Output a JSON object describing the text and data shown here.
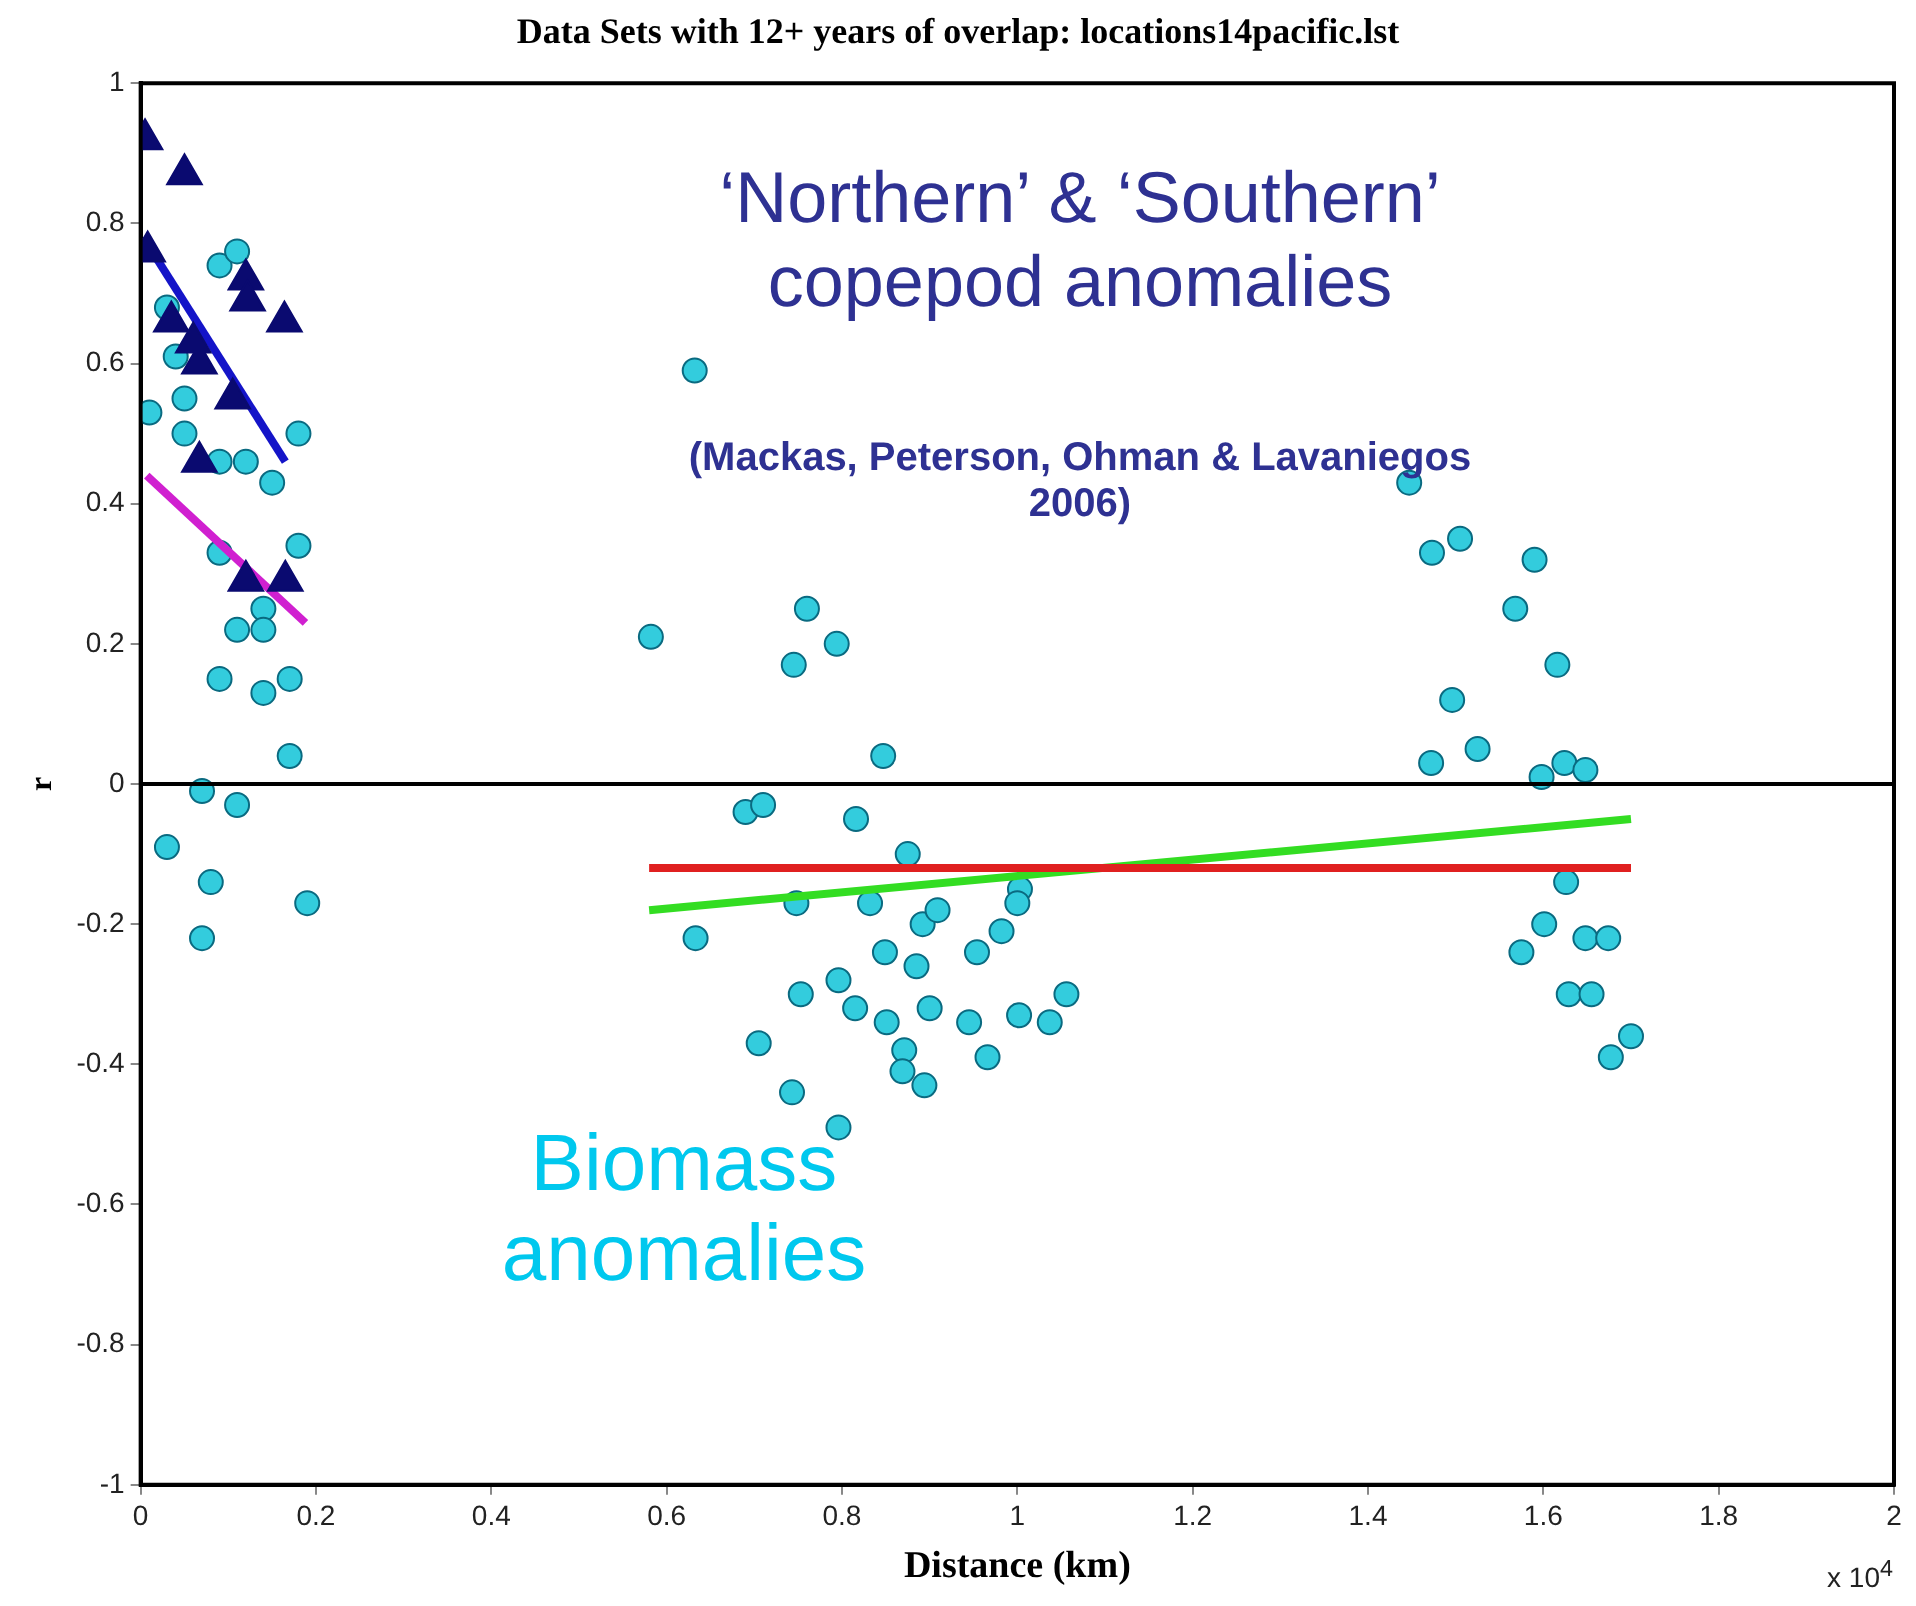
{
  "chart_data": {
    "type": "scatter",
    "title": "Data Sets with 12+ years of overlap: locations14pacific.lst",
    "xlabel": "Distance (km)",
    "ylabel": "r",
    "xlim": [
      0,
      2
    ],
    "xticks": [
      0,
      0.2,
      0.4,
      0.6,
      0.8,
      1,
      1.2,
      1.4,
      1.6,
      1.8,
      2
    ],
    "ylim": [
      -1,
      1
    ],
    "yticks": [
      -1,
      -0.8,
      -0.6,
      -0.4,
      -0.2,
      0,
      0.2,
      0.4,
      0.6,
      0.8,
      1
    ],
    "grid": false,
    "legend": false,
    "ref_lines": [
      {
        "axis": "y",
        "value": 0,
        "color": "#000000"
      }
    ],
    "annotations": [
      "‘Northern’ & ‘Southern’ copepod anomalies",
      "(Mackas, Peterson, Ohman & Lavaniegos 2006)",
      "Biomass anomalies",
      "x 10$^{4}$"
    ],
    "series": [
      {
        "type": "scatter",
        "marker": "circle",
        "color": "#33ccdd",
        "x": [
          0.01,
          0.05,
          0.05,
          0.03,
          0.04,
          0.09,
          0.11,
          0.09,
          0.12,
          0.15,
          0.18,
          0.18,
          0.09,
          0.14,
          0.11,
          0.14,
          0.09,
          0.14,
          0.17,
          0.17,
          0.07,
          0.11,
          0.03,
          0.08,
          0.07,
          0.19,
          0.632,
          0.582,
          0.76,
          0.794,
          0.745,
          0.847,
          0.69,
          0.71,
          0.816,
          0.875,
          0.633,
          0.748,
          0.832,
          1.003,
          1.0,
          0.892,
          0.909,
          0.982,
          0.849,
          0.954,
          0.885,
          0.753,
          0.796,
          0.815,
          0.851,
          0.9,
          0.945,
          1.002,
          1.037,
          1.056,
          0.966,
          0.871,
          0.869,
          0.894,
          0.705,
          0.743,
          0.796,
          1.447,
          1.473,
          1.505,
          1.59,
          1.568,
          1.616,
          1.496,
          1.525,
          1.472,
          1.598,
          1.624,
          1.648,
          1.626,
          1.601,
          1.575,
          1.648,
          1.674,
          1.629,
          1.655,
          1.7,
          1.677
        ],
        "values": [
          0.53,
          0.55,
          0.5,
          0.68,
          0.61,
          0.74,
          0.76,
          0.46,
          0.46,
          0.43,
          0.5,
          0.34,
          0.33,
          0.25,
          0.22,
          0.22,
          0.15,
          0.13,
          0.15,
          0.04,
          -0.01,
          -0.03,
          -0.09,
          -0.14,
          -0.22,
          -0.17,
          0.59,
          0.21,
          0.25,
          0.2,
          0.17,
          0.04,
          -0.04,
          -0.03,
          -0.05,
          -0.1,
          -0.22,
          -0.17,
          -0.17,
          -0.15,
          -0.17,
          -0.2,
          -0.18,
          -0.21,
          -0.24,
          -0.24,
          -0.26,
          -0.3,
          -0.28,
          -0.32,
          -0.34,
          -0.32,
          -0.34,
          -0.33,
          -0.34,
          -0.3,
          -0.39,
          -0.38,
          -0.41,
          -0.43,
          -0.37,
          -0.44,
          -0.49,
          0.43,
          0.33,
          0.35,
          0.32,
          0.25,
          0.17,
          0.12,
          0.05,
          0.03,
          0.01,
          0.03,
          0.02,
          -0.14,
          -0.2,
          -0.24,
          -0.22,
          -0.22,
          -0.3,
          -0.3,
          -0.36,
          -0.39
        ]
      },
      {
        "type": "scatter",
        "marker": "triangle",
        "color": "#0a0a70",
        "x": [
          0.005,
          0.05,
          0.008,
          0.045,
          0.067,
          0.035,
          0.06,
          0.12,
          0.122,
          0.164,
          0.105,
          0.067,
          0.12,
          0.165
        ],
        "values": [
          0.92,
          0.87,
          0.76,
          null,
          0.6,
          0.66,
          0.63,
          0.72,
          0.69,
          0.66,
          0.55,
          0.46,
          0.29,
          0.29
        ]
      },
      {
        "type": "line",
        "marker": "none",
        "color": "#1414c8",
        "x": [
          0.003,
          0.165
        ],
        "values": [
          0.78,
          0.46
        ]
      },
      {
        "type": "line",
        "marker": "none",
        "color": "#d020d0",
        "x": [
          0.007,
          0.188
        ],
        "values": [
          0.44,
          0.23
        ]
      },
      {
        "type": "line",
        "marker": "none",
        "color": "#e02020",
        "x": [
          0.58,
          1.7
        ],
        "values": [
          -0.12,
          -0.12
        ]
      },
      {
        "type": "line",
        "marker": "none",
        "color": "#33dd22",
        "x": [
          0.58,
          1.7
        ],
        "values": [
          -0.18,
          -0.05
        ]
      }
    ]
  }
}
